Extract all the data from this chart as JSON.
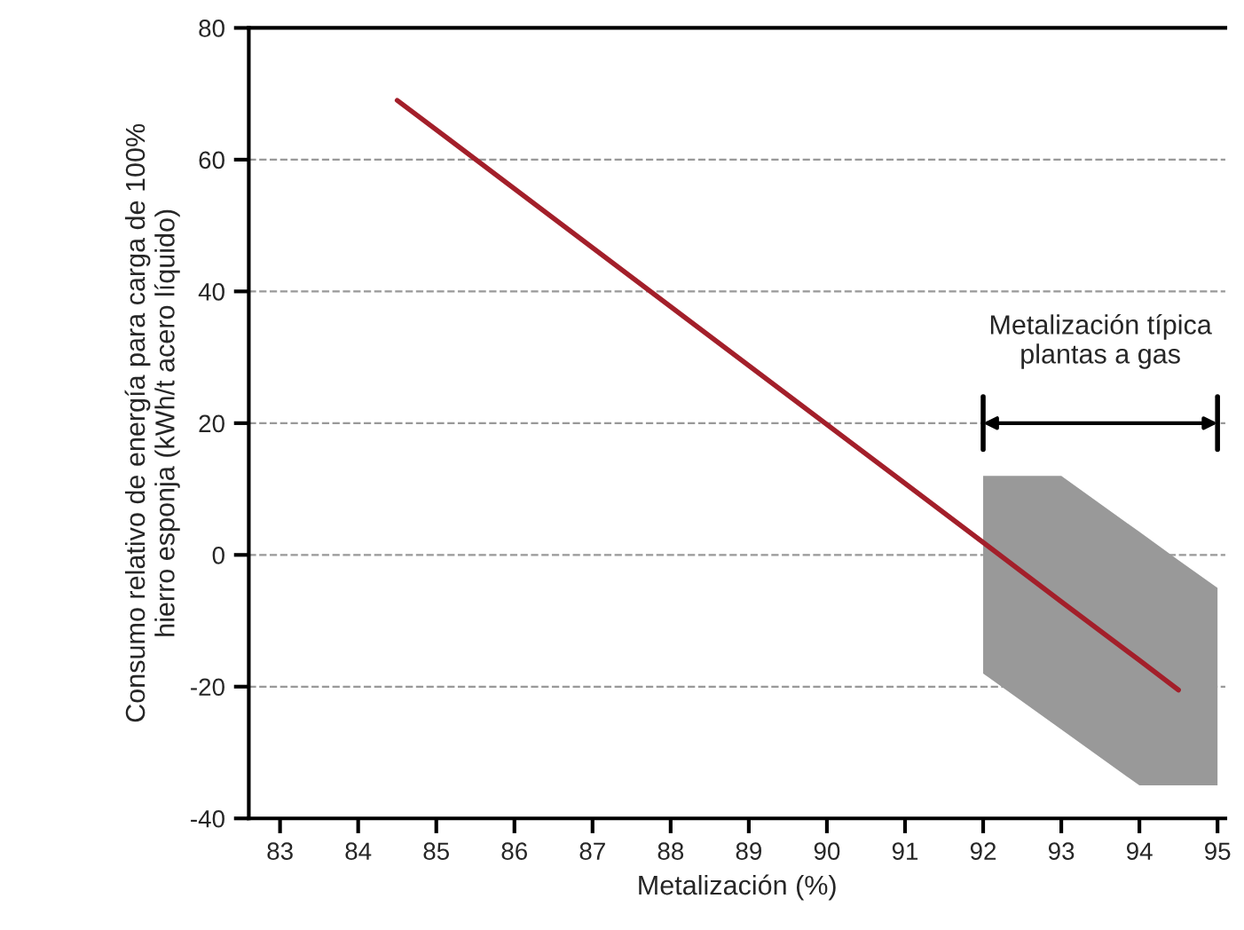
{
  "chart_data": {
    "type": "line",
    "xlabel": "Metalización (%)",
    "ylabel": "Consumo relativo de energía para carga de 100%\nhierro esponja (kWh/t acero líquido)",
    "series": [
      {
        "color": "#a31f2a",
        "x": [
          84.5,
          92,
          93,
          94,
          94.5,
          95
        ],
        "values": [
          69,
          1.9,
          -7.1,
          -16.0,
          -20.5,
          null
        ],
        "lower": [
          null,
          -18,
          -26.5,
          -35,
          -35,
          -35
        ],
        "upper": [
          null,
          12,
          12,
          3.5,
          -0.8,
          -5
        ]
      }
    ],
    "annotations": [
      "Metalización típica\nplantas a gas"
    ],
    "xlim": [
      82.6,
      95.1
    ],
    "ylim": [
      -40,
      80
    ],
    "xticks": [
      83,
      84,
      85,
      86,
      87,
      88,
      89,
      90,
      91,
      92,
      93,
      94,
      95
    ],
    "yticks": [
      -40,
      -20,
      0,
      20,
      40,
      60,
      80
    ],
    "grid": "y",
    "line_style": "solid",
    "marker": "none"
  }
}
